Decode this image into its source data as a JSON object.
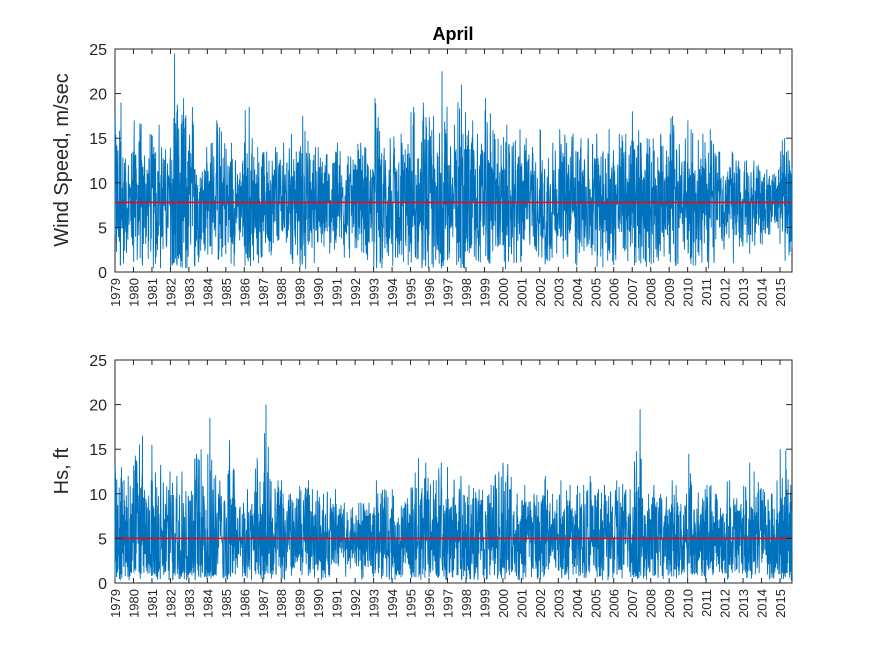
{
  "chart_data": [
    {
      "type": "line",
      "title": "April",
      "xlabel": "",
      "ylabel": "Wind Speed, m/sec",
      "ylim": [
        0,
        25
      ],
      "yticks": [
        0,
        5,
        10,
        15,
        20,
        25
      ],
      "xlim": [
        1979,
        2015.65
      ],
      "xticks": [
        "1979",
        "1980",
        "1981",
        "1982",
        "1983",
        "1984",
        "1985",
        "1986",
        "1987",
        "1988",
        "1989",
        "1990",
        "1991",
        "1992",
        "1993",
        "1994",
        "1995",
        "1996",
        "1997",
        "1998",
        "1999",
        "2000",
        "2001",
        "2002",
        "2003",
        "2004",
        "2005",
        "2006",
        "2007",
        "2008",
        "2009",
        "2010",
        "2011",
        "2012",
        "2013",
        "2014",
        "2015"
      ],
      "mean_line": 7.8,
      "grid": false,
      "series_color": "#0072BD",
      "mean_color": "#FF0000",
      "series": [
        {
          "x": [
            1979.0,
            1979.5,
            1980.0,
            1980.5,
            1981.0,
            1981.5,
            1982.0,
            1982.5,
            1983.0,
            1983.5,
            1984.0,
            1984.5,
            1985.0,
            1985.5,
            1986.0,
            1986.5,
            1987.0,
            1987.5,
            1988.0,
            1988.5,
            1989.0,
            1989.5,
            1990.0,
            1990.5,
            1991.0,
            1991.5,
            1992.0,
            1992.5,
            1993.0,
            1993.5,
            1994.0,
            1994.5,
            1995.0,
            1995.5,
            1996.0,
            1996.5,
            1997.0,
            1997.5,
            1998.0,
            1998.5,
            1999.0,
            1999.5,
            2000.0,
            2000.5,
            2001.0,
            2001.5,
            2002.0,
            2002.5,
            2003.0,
            2003.5,
            2004.0,
            2004.5,
            2005.0,
            2005.5,
            2006.0,
            2006.5,
            2007.0,
            2007.5,
            2008.0,
            2008.5,
            2009.0,
            2009.5,
            2010.0,
            2010.5,
            2011.0,
            2011.5,
            2012.0,
            2012.5,
            2013.0,
            2013.5,
            2014.0,
            2014.5,
            2015.0,
            2015.5
          ],
          "y": [
            19.0,
            13.5,
            17.0,
            15.5,
            16.5,
            14.0,
            24.5,
            19.5,
            18.5,
            14.0,
            14.5,
            17.0,
            14.5,
            12.5,
            18.5,
            14.0,
            13.5,
            14.0,
            14.5,
            15.5,
            17.5,
            14.0,
            14.0,
            13.5,
            14.5,
            13.0,
            14.5,
            14.0,
            19.5,
            15.0,
            15.5,
            14.5,
            18.5,
            19.0,
            17.5,
            22.5,
            16.5,
            21.0,
            17.0,
            15.5,
            19.5,
            15.5,
            16.5,
            16.0,
            15.0,
            14.0,
            16.0,
            14.5,
            16.0,
            15.5,
            15.0,
            15.0,
            15.5,
            16.0,
            15.5,
            15.5,
            18.0,
            15.0,
            15.0,
            15.5,
            17.5,
            15.0,
            17.0,
            15.5,
            16.0,
            13.5,
            13.5,
            12.5,
            12.5,
            12.5,
            11.5,
            11.5,
            15.0,
            12.5
          ]
        }
      ]
    },
    {
      "type": "line",
      "title": "",
      "xlabel": "",
      "ylabel": "Hs, ft",
      "ylim": [
        0,
        25
      ],
      "yticks": [
        0,
        5,
        10,
        15,
        20,
        25
      ],
      "xlim": [
        1979,
        2015.65
      ],
      "xticks": [
        "1979",
        "1980",
        "1981",
        "1982",
        "1983",
        "1984",
        "1985",
        "1986",
        "1987",
        "1988",
        "1989",
        "1990",
        "1991",
        "1992",
        "1993",
        "1994",
        "1995",
        "1996",
        "1997",
        "1998",
        "1999",
        "2000",
        "2001",
        "2002",
        "2003",
        "2004",
        "2005",
        "2006",
        "2007",
        "2008",
        "2009",
        "2010",
        "2011",
        "2012",
        "2013",
        "2014",
        "2015"
      ],
      "mean_line": 5.0,
      "grid": false,
      "series_color": "#0072BD",
      "mean_color": "#FF0000",
      "series": [
        {
          "x": [
            1979.0,
            1979.5,
            1980.0,
            1980.5,
            1981.0,
            1981.5,
            1982.0,
            1982.5,
            1983.0,
            1983.5,
            1984.0,
            1984.5,
            1985.0,
            1985.5,
            1986.0,
            1986.5,
            1987.0,
            1987.5,
            1988.0,
            1988.5,
            1989.0,
            1989.5,
            1990.0,
            1990.5,
            1991.0,
            1991.5,
            1992.0,
            1992.5,
            1993.0,
            1993.5,
            1994.0,
            1994.5,
            1995.0,
            1995.5,
            1996.0,
            1996.5,
            1997.0,
            1997.5,
            1998.0,
            1998.5,
            1999.0,
            1999.5,
            2000.0,
            2000.5,
            2001.0,
            2001.5,
            2002.0,
            2002.5,
            2003.0,
            2003.5,
            2004.0,
            2004.5,
            2005.0,
            2005.5,
            2006.0,
            2006.5,
            2007.0,
            2007.5,
            2008.0,
            2008.5,
            2009.0,
            2009.5,
            2010.0,
            2010.5,
            2011.0,
            2011.5,
            2012.0,
            2012.5,
            2013.0,
            2013.5,
            2014.0,
            2014.5,
            2015.0,
            2015.5
          ],
          "y": [
            13.0,
            12.0,
            16.5,
            11.5,
            15.5,
            12.5,
            12.0,
            12.5,
            14.5,
            15.0,
            18.5,
            11.5,
            16.0,
            9.0,
            10.5,
            14.0,
            20.0,
            11.5,
            11.5,
            10.0,
            11.5,
            10.5,
            10.0,
            10.5,
            9.0,
            8.5,
            9.0,
            9.0,
            11.5,
            10.5,
            10.5,
            9.5,
            14.0,
            13.5,
            11.5,
            13.5,
            13.0,
            12.0,
            11.0,
            10.5,
            11.0,
            12.5,
            13.5,
            10.0,
            11.0,
            10.0,
            12.0,
            10.0,
            11.5,
            11.0,
            11.0,
            12.0,
            10.5,
            11.0,
            11.5,
            10.5,
            19.5,
            10.0,
            11.0,
            10.0,
            11.5,
            10.0,
            14.5,
            10.5,
            11.0,
            10.0,
            11.5,
            9.5,
            13.5,
            12.5,
            10.5,
            11.5,
            15.0,
            11.0
          ]
        }
      ]
    }
  ]
}
